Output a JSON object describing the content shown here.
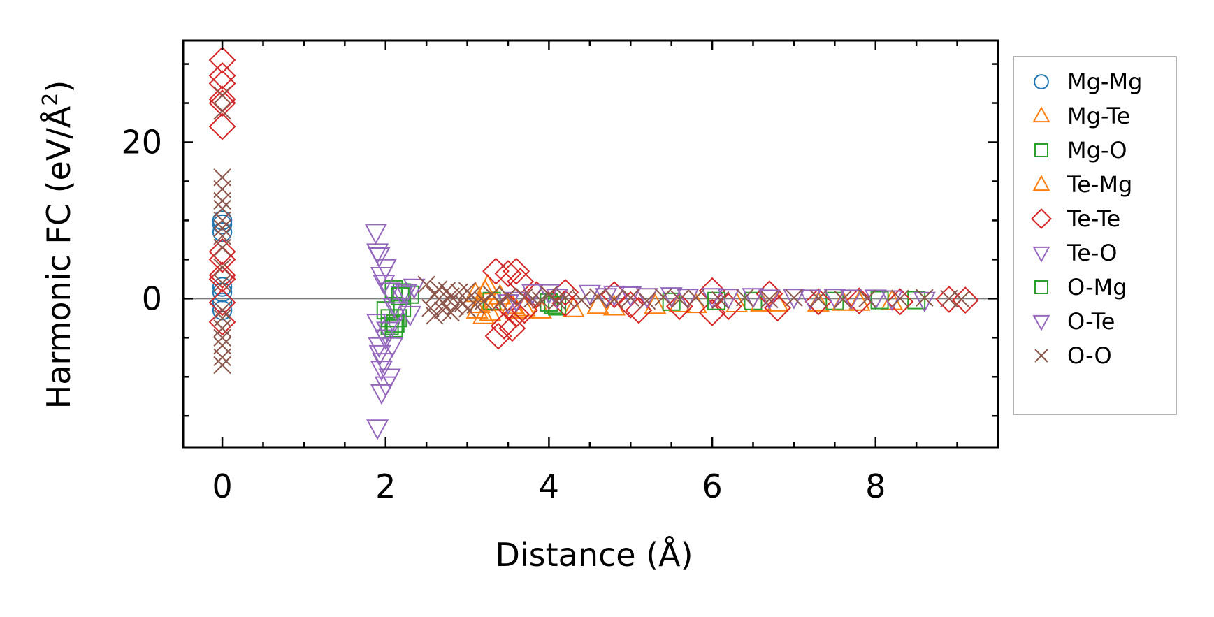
{
  "chart_data": {
    "type": "scatter",
    "xlabel": "Distance (Å)",
    "ylabel_prefix": "Harmonic FC (eV/Å",
    "ylabel_sup": "2",
    "ylabel_suffix": ")",
    "xlim": [
      -0.48,
      9.5
    ],
    "ylim": [
      -19,
      33
    ],
    "xticks": [
      0,
      2,
      4,
      6,
      8
    ],
    "yticks": [
      0,
      20
    ],
    "x_minor_step": 0.5,
    "y_minor_step": 5,
    "zero_line": true,
    "legend_position": "outside right",
    "series": [
      {
        "name": "Mg-Mg",
        "marker": "circle",
        "color": "#1f77b4",
        "points": [
          [
            0,
            10
          ],
          [
            0,
            9.5
          ],
          [
            0,
            8.5
          ],
          [
            0,
            1.5
          ],
          [
            0,
            0.8
          ],
          [
            0,
            -0.5
          ],
          [
            0,
            -1.5
          ]
        ]
      },
      {
        "name": "Mg-Te",
        "marker": "triangle-up",
        "color": "#ff7f0e",
        "points": [
          [
            3.1,
            0.6
          ],
          [
            3.15,
            -0.8
          ],
          [
            3.2,
            -2.2
          ],
          [
            3.25,
            1.6
          ],
          [
            3.3,
            -0.5
          ],
          [
            3.4,
            0.3
          ],
          [
            3.6,
            -1.5
          ],
          [
            3.7,
            -1.2
          ],
          [
            3.9,
            -1.5
          ],
          [
            4.3,
            -1.3
          ],
          [
            4.8,
            -1.1
          ],
          [
            5.3,
            -0.9
          ],
          [
            5.8,
            -0.8
          ],
          [
            6.3,
            -0.7
          ],
          [
            6.8,
            -0.6
          ],
          [
            7.3,
            -0.6
          ],
          [
            7.8,
            -0.5
          ],
          [
            8.2,
            -0.4
          ]
        ]
      },
      {
        "name": "Mg-O",
        "marker": "square",
        "color": "#2ca02c",
        "points": [
          [
            2.0,
            -1.5
          ],
          [
            2.05,
            -3.5
          ],
          [
            2.1,
            -3.8
          ],
          [
            2.15,
            -2.5
          ],
          [
            2.2,
            -1.2
          ],
          [
            2.1,
            1.2
          ],
          [
            2.2,
            0.8
          ],
          [
            2.3,
            0.5
          ],
          [
            3.3,
            -0.3
          ],
          [
            4.0,
            -0.5
          ],
          [
            4.1,
            -1.0
          ],
          [
            5.5,
            -0.4
          ],
          [
            6.5,
            -0.3
          ],
          [
            7.5,
            -0.3
          ],
          [
            8.5,
            -0.2
          ]
        ]
      },
      {
        "name": "Te-Mg",
        "marker": "triangle-up",
        "color": "#ff7f0e",
        "points": [
          [
            3.12,
            -1.5
          ],
          [
            3.22,
            0.9
          ],
          [
            3.28,
            -1.8
          ],
          [
            3.55,
            -0.9
          ],
          [
            4.6,
            -0.9
          ],
          [
            5.6,
            -0.7
          ],
          [
            6.6,
            -0.6
          ],
          [
            7.6,
            -0.5
          ]
        ]
      },
      {
        "name": "Te-Te",
        "marker": "diamond",
        "color": "#d62728",
        "points": [
          [
            0,
            30.5
          ],
          [
            0,
            28.5
          ],
          [
            0,
            27.5
          ],
          [
            0,
            25.5
          ],
          [
            0,
            25.0
          ],
          [
            0,
            22.0
          ],
          [
            0,
            6
          ],
          [
            0,
            5
          ],
          [
            0,
            3
          ],
          [
            0,
            2.5
          ],
          [
            0,
            -0.5
          ],
          [
            0,
            -3
          ],
          [
            3.35,
            3.5
          ],
          [
            3.38,
            -4.8
          ],
          [
            3.45,
            -3.5
          ],
          [
            3.5,
            3.2
          ],
          [
            3.5,
            -1.0
          ],
          [
            3.55,
            -3.8
          ],
          [
            3.6,
            3.5
          ],
          [
            3.6,
            -2.0
          ],
          [
            3.65,
            2.2
          ],
          [
            3.7,
            -1.5
          ],
          [
            3.85,
            0.5
          ],
          [
            4.2,
            0.8
          ],
          [
            4.2,
            -0.6
          ],
          [
            4.8,
            0.5
          ],
          [
            5.0,
            -0.8
          ],
          [
            5.1,
            -1.5
          ],
          [
            5.6,
            -1.0
          ],
          [
            6.0,
            1.0
          ],
          [
            6.0,
            -1.8
          ],
          [
            6.2,
            -1.0
          ],
          [
            6.7,
            0.6
          ],
          [
            6.8,
            -1.2
          ],
          [
            7.3,
            -0.4
          ],
          [
            7.8,
            -0.3
          ],
          [
            8.3,
            -0.4
          ],
          [
            8.9,
            -0.1
          ],
          [
            9.1,
            -0.2
          ]
        ]
      },
      {
        "name": "Te-O",
        "marker": "triangle-down",
        "color": "#9467bd",
        "points": [
          [
            1.9,
            -3
          ],
          [
            1.92,
            -6
          ],
          [
            1.95,
            -9
          ],
          [
            1.95,
            -12
          ],
          [
            2.0,
            -11
          ],
          [
            2.05,
            -10
          ],
          [
            2.0,
            -5
          ],
          [
            2.1,
            -3
          ],
          [
            1.88,
            8.5
          ],
          [
            1.9,
            6
          ],
          [
            1.95,
            3
          ],
          [
            2.0,
            4
          ],
          [
            2.05,
            1
          ],
          [
            2.1,
            -1
          ],
          [
            2.2,
            0.5
          ],
          [
            2.3,
            -2
          ],
          [
            2.35,
            1.5
          ],
          [
            3.5,
            -0.5
          ],
          [
            3.8,
            0.8
          ],
          [
            4.0,
            0.8
          ],
          [
            4.5,
            0.7
          ],
          [
            4.8,
            0.6
          ],
          [
            5.0,
            0.5
          ],
          [
            5.5,
            0.4
          ],
          [
            6.0,
            0.3
          ],
          [
            6.5,
            0.3
          ],
          [
            7.0,
            0.2
          ],
          [
            7.5,
            0.2
          ],
          [
            8.0,
            0.1
          ],
          [
            8.6,
            -0.2
          ]
        ]
      },
      {
        "name": "O-Mg",
        "marker": "square",
        "color": "#2ca02c",
        "points": [
          [
            2.05,
            -2.5
          ],
          [
            2.12,
            -3.2
          ],
          [
            2.18,
            0.3
          ],
          [
            4.05,
            -0.8
          ],
          [
            6.05,
            -0.3
          ],
          [
            8.05,
            -0.2
          ]
        ]
      },
      {
        "name": "O-Te",
        "marker": "triangle-down",
        "color": "#9467bd",
        "points": [
          [
            1.9,
            -16.5
          ],
          [
            1.93,
            -7
          ],
          [
            1.97,
            -8
          ],
          [
            2.02,
            -4
          ],
          [
            2.08,
            -6
          ],
          [
            1.92,
            5.5
          ],
          [
            1.98,
            2
          ],
          [
            2.15,
            -1.5
          ],
          [
            2.25,
            0.8
          ],
          [
            3.6,
            -0.2
          ],
          [
            4.1,
            0.2
          ],
          [
            4.7,
            0.3
          ],
          [
            5.2,
            0.3
          ],
          [
            5.7,
            0.2
          ],
          [
            6.2,
            0.2
          ],
          [
            6.7,
            0.1
          ],
          [
            7.2,
            0.1
          ],
          [
            7.7,
            0.1
          ],
          [
            8.2,
            0
          ]
        ]
      },
      {
        "name": "O-O",
        "marker": "x",
        "color": "#8c564b",
        "points": [
          [
            0,
            15.5
          ],
          [
            0,
            14
          ],
          [
            0,
            12.5
          ],
          [
            0,
            11.5
          ],
          [
            0,
            10
          ],
          [
            0,
            9
          ],
          [
            0,
            8
          ],
          [
            0,
            6.5
          ],
          [
            0,
            4
          ],
          [
            0,
            2
          ],
          [
            0,
            -1.5
          ],
          [
            0,
            -2.5
          ],
          [
            0,
            -3.8
          ],
          [
            0,
            -5
          ],
          [
            0,
            -6
          ],
          [
            0,
            -7.5
          ],
          [
            0,
            -8.5
          ],
          [
            0,
            24
          ],
          [
            0,
            26
          ],
          [
            2.5,
            1.8
          ],
          [
            2.55,
            -1.2
          ],
          [
            2.6,
            -2.2
          ],
          [
            2.6,
            0.5
          ],
          [
            2.65,
            1.2
          ],
          [
            2.7,
            -1.5
          ],
          [
            2.7,
            -0.5
          ],
          [
            2.75,
            1.0
          ],
          [
            2.8,
            -1.8
          ],
          [
            2.8,
            0.3
          ],
          [
            2.85,
            -1.0
          ],
          [
            2.9,
            0.8
          ],
          [
            2.95,
            -0.6
          ],
          [
            3.0,
            1.0
          ],
          [
            3.0,
            -1.3
          ],
          [
            3.05,
            0.4
          ],
          [
            3.1,
            -0.8
          ],
          [
            3.2,
            -0.3
          ],
          [
            3.3,
            0.5
          ],
          [
            3.4,
            -0.5
          ],
          [
            3.5,
            0.3
          ],
          [
            3.7,
            0.2
          ],
          [
            3.8,
            0
          ],
          [
            3.9,
            -0.2
          ],
          [
            4.0,
            0.5
          ],
          [
            4.1,
            -0.3
          ],
          [
            4.2,
            0.1
          ],
          [
            4.4,
            -0.2
          ],
          [
            4.6,
            0.2
          ],
          [
            4.8,
            -0.1
          ],
          [
            5.0,
            0.1
          ],
          [
            5.2,
            -0.3
          ],
          [
            5.4,
            0.2
          ],
          [
            5.6,
            -0.1
          ],
          [
            5.8,
            0.1
          ],
          [
            6.1,
            -0.2
          ],
          [
            6.4,
            0.1
          ],
          [
            6.7,
            -0.1
          ],
          [
            7.0,
            0.1
          ],
          [
            7.3,
            0
          ],
          [
            7.6,
            -0.1
          ],
          [
            7.9,
            0
          ],
          [
            8.3,
            0
          ],
          [
            8.6,
            0.1
          ],
          [
            8.9,
            0
          ],
          [
            9.05,
            -0.1
          ]
        ]
      }
    ]
  }
}
